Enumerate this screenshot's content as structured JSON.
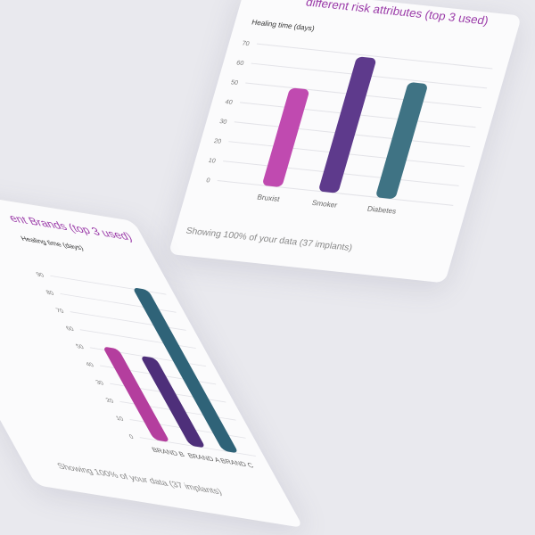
{
  "chart_data": [
    {
      "type": "bar",
      "title_visible": "different risk attributes (top 3 used)",
      "ylabel": "Healing time (days)",
      "categories": [
        "Bruxist",
        "Smoker",
        "Diabetes"
      ],
      "values": [
        50,
        69,
        59
      ],
      "ylim": [
        0,
        70
      ],
      "yticks": [
        0,
        10,
        20,
        30,
        40,
        50,
        60,
        70
      ],
      "grid": true,
      "colors": [
        "#c04ab0",
        "#5e3a8c",
        "#3f7384"
      ],
      "footer": "Showing 100% of your data (37 implants)"
    },
    {
      "type": "bar",
      "title_visible": "ent Brands (top 3 used)",
      "ylabel": "Healing time (days)",
      "categories": [
        "BRAND B",
        "BRAND A",
        "BRAND C"
      ],
      "values": [
        52,
        50,
        91
      ],
      "ylim": [
        0,
        90
      ],
      "yticks": [
        0,
        10,
        20,
        30,
        40,
        50,
        60,
        70,
        80,
        90
      ],
      "grid": true,
      "colors": [
        "#b43e9e",
        "#4e2f7a",
        "#2f6378"
      ],
      "footer": "Showing 100% of your data (37 implants)"
    }
  ]
}
